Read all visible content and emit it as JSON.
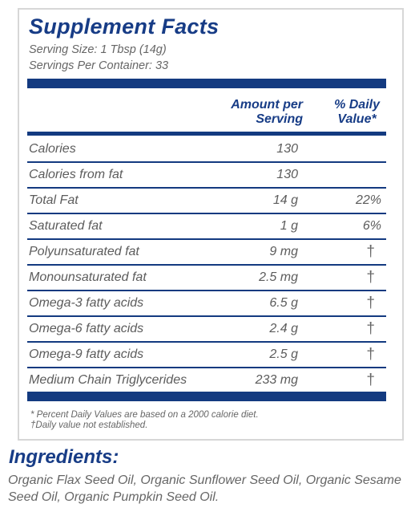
{
  "panel": {
    "title": "Supplement Facts",
    "serving_size": "Serving Size: 1 Tbsp (14g)",
    "servings_per_container": "Servings Per Container: 33",
    "col_amount_line1": "Amount per",
    "col_amount_line2": "Serving",
    "col_dv_line1": "% Daily",
    "col_dv_line2": "Value*",
    "rows": [
      {
        "name": "Calories",
        "amount": "130",
        "dv": ""
      },
      {
        "name": "Calories from fat",
        "amount": "130",
        "dv": ""
      },
      {
        "name": "Total Fat",
        "amount": "14 g",
        "dv": "22%"
      },
      {
        "name": "Saturated fat",
        "amount": "1 g",
        "dv": "6%"
      },
      {
        "name": "Polyunsaturated fat",
        "amount": "9 mg",
        "dv": "†"
      },
      {
        "name": "Monounsaturated fat",
        "amount": "2.5 mg",
        "dv": "†"
      },
      {
        "name": "Omega-3 fatty acids",
        "amount": "6.5 g",
        "dv": "†"
      },
      {
        "name": "Omega-6 fatty acids",
        "amount": "2.4 g",
        "dv": "†"
      },
      {
        "name": "Omega-9 fatty acids",
        "amount": "2.5 g",
        "dv": "†"
      },
      {
        "name": "Medium Chain Triglycerides",
        "amount": "233 mg",
        "dv": "†"
      }
    ],
    "footnote_1": "* Percent Daily Values are based on a 2000 calorie diet.",
    "footnote_2": "†Daily value not established."
  },
  "ingredients": {
    "title": "Ingredients:",
    "text": "Organic Flax Seed Oil, Organic Sunflower Seed Oil, Organic Sesame Seed Oil, Organic Pumpkin Seed Oil."
  },
  "colors": {
    "brand_blue": "#173c86",
    "rule_blue": "#133a80",
    "border_gray": "#d7d7d7"
  }
}
